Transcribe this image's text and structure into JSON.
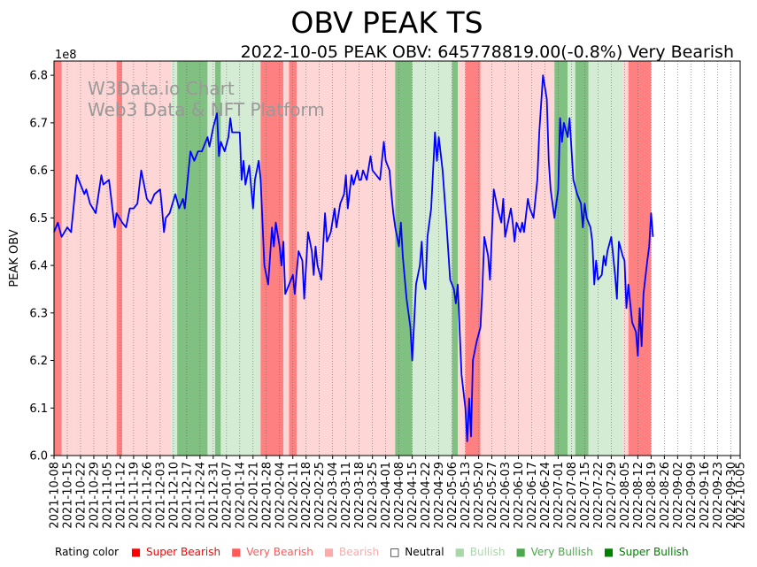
{
  "chart_data": {
    "type": "line",
    "title": "OBV PEAK TS",
    "subtitle": "2022-10-05 PEAK OBV: 645778819.00(-0.8%) Very Bearish",
    "xlabel": "",
    "ylabel": "PEAK OBV",
    "y_multiplier": "1e8",
    "ylim": [
      6.0,
      6.83
    ],
    "yticks": [
      "6.0",
      "6.1",
      "6.2",
      "6.3",
      "6.4",
      "6.5",
      "6.6",
      "6.7",
      "6.8"
    ],
    "ytick_values": [
      6.0,
      6.1,
      6.2,
      6.3,
      6.4,
      6.5,
      6.6,
      6.7,
      6.8
    ],
    "x_start": "2021-10-08",
    "x_end": "2022-10-05",
    "xticks": [
      "2021-10-08",
      "2021-10-15",
      "2021-10-22",
      "2021-10-29",
      "2021-11-05",
      "2021-11-12",
      "2021-11-19",
      "2021-11-26",
      "2021-12-03",
      "2021-12-10",
      "2021-12-17",
      "2021-12-24",
      "2021-12-31",
      "2022-01-07",
      "2022-01-14",
      "2022-01-21",
      "2022-01-28",
      "2022-02-04",
      "2022-02-11",
      "2022-02-18",
      "2022-02-25",
      "2022-03-04",
      "2022-03-11",
      "2022-03-18",
      "2022-03-25",
      "2022-04-01",
      "2022-04-08",
      "2022-04-15",
      "2022-04-22",
      "2022-04-29",
      "2022-05-06",
      "2022-05-13",
      "2022-05-20",
      "2022-05-27",
      "2022-06-03",
      "2022-06-10",
      "2022-06-17",
      "2022-06-24",
      "2022-07-01",
      "2022-07-08",
      "2022-07-15",
      "2022-07-22",
      "2022-07-29",
      "2022-08-05",
      "2022-08-12",
      "2022-08-19",
      "2022-08-26",
      "2022-09-02",
      "2022-09-09",
      "2022-09-16",
      "2022-09-23",
      "2022-09-30",
      "2022-10-05"
    ],
    "bands": [
      {
        "start": 0,
        "end": 4,
        "rating": "very_bearish"
      },
      {
        "start": 4,
        "end": 10,
        "rating": "bearish"
      },
      {
        "start": 10,
        "end": 33,
        "rating": "bearish"
      },
      {
        "start": 33,
        "end": 36,
        "rating": "very_bearish"
      },
      {
        "start": 36,
        "end": 40,
        "rating": "bearish"
      },
      {
        "start": 40,
        "end": 62,
        "rating": "bearish"
      },
      {
        "start": 62,
        "end": 65,
        "rating": "bullish"
      },
      {
        "start": 65,
        "end": 81,
        "rating": "very_bullish"
      },
      {
        "start": 81,
        "end": 85,
        "rating": "bullish"
      },
      {
        "start": 85,
        "end": 88,
        "rating": "very_bullish"
      },
      {
        "start": 88,
        "end": 109,
        "rating": "bullish"
      },
      {
        "start": 109,
        "end": 121,
        "rating": "very_bearish"
      },
      {
        "start": 121,
        "end": 124,
        "rating": "bearish"
      },
      {
        "start": 124,
        "end": 128,
        "rating": "very_bearish"
      },
      {
        "start": 128,
        "end": 180,
        "rating": "bearish"
      },
      {
        "start": 180,
        "end": 189,
        "rating": "very_bullish"
      },
      {
        "start": 189,
        "end": 210,
        "rating": "bullish"
      },
      {
        "start": 210,
        "end": 213,
        "rating": "very_bullish"
      },
      {
        "start": 213,
        "end": 217,
        "rating": "bearish"
      },
      {
        "start": 217,
        "end": 225,
        "rating": "very_bearish"
      },
      {
        "start": 225,
        "end": 264,
        "rating": "bearish"
      },
      {
        "start": 264,
        "end": 271,
        "rating": "very_bullish"
      },
      {
        "start": 271,
        "end": 275,
        "rating": "bullish"
      },
      {
        "start": 275,
        "end": 282,
        "rating": "very_bullish"
      },
      {
        "start": 282,
        "end": 300,
        "rating": "bullish"
      },
      {
        "start": 300,
        "end": 303,
        "rating": "bearish"
      },
      {
        "start": 303,
        "end": 315,
        "rating": "very_bearish"
      }
    ],
    "series": [
      {
        "name": "PEAK OBV",
        "color": "#0000ff",
        "points": [
          [
            0,
            6.47
          ],
          [
            2,
            6.49
          ],
          [
            4,
            6.46
          ],
          [
            7,
            6.48
          ],
          [
            9,
            6.47
          ],
          [
            12,
            6.59
          ],
          [
            16,
            6.55
          ],
          [
            17,
            6.56
          ],
          [
            19,
            6.53
          ],
          [
            22,
            6.51
          ],
          [
            25,
            6.59
          ],
          [
            26,
            6.57
          ],
          [
            29,
            6.58
          ],
          [
            32,
            6.48
          ],
          [
            33,
            6.51
          ],
          [
            36,
            6.49
          ],
          [
            38,
            6.48
          ],
          [
            40,
            6.52
          ],
          [
            42,
            6.52
          ],
          [
            44,
            6.53
          ],
          [
            46,
            6.6
          ],
          [
            47,
            6.58
          ],
          [
            49,
            6.54
          ],
          [
            51,
            6.53
          ],
          [
            53,
            6.55
          ],
          [
            56,
            6.56
          ],
          [
            57,
            6.52
          ],
          [
            58,
            6.47
          ],
          [
            59,
            6.5
          ],
          [
            61,
            6.51
          ],
          [
            64,
            6.55
          ],
          [
            66,
            6.52
          ],
          [
            68,
            6.54
          ],
          [
            69,
            6.52
          ],
          [
            72,
            6.64
          ],
          [
            74,
            6.62
          ],
          [
            76,
            6.64
          ],
          [
            78,
            6.64
          ],
          [
            81,
            6.67
          ],
          [
            82,
            6.65
          ],
          [
            84,
            6.69
          ],
          [
            86,
            6.72
          ],
          [
            87,
            6.63
          ],
          [
            88,
            6.66
          ],
          [
            90,
            6.64
          ],
          [
            92,
            6.67
          ],
          [
            93,
            6.71
          ],
          [
            94,
            6.68
          ],
          [
            96,
            6.68
          ],
          [
            98,
            6.68
          ],
          [
            99,
            6.58
          ],
          [
            100,
            6.62
          ],
          [
            101,
            6.57
          ],
          [
            103,
            6.61
          ],
          [
            105,
            6.52
          ],
          [
            106,
            6.58
          ],
          [
            108,
            6.62
          ],
          [
            109,
            6.58
          ],
          [
            111,
            6.4
          ],
          [
            113,
            6.36
          ],
          [
            115,
            6.48
          ],
          [
            116,
            6.44
          ],
          [
            117,
            6.49
          ],
          [
            119,
            6.44
          ],
          [
            120,
            6.4
          ],
          [
            121,
            6.45
          ],
          [
            122,
            6.34
          ],
          [
            124,
            6.36
          ],
          [
            126,
            6.38
          ],
          [
            127,
            6.34
          ],
          [
            129,
            6.43
          ],
          [
            131,
            6.41
          ],
          [
            132,
            6.33
          ],
          [
            134,
            6.47
          ],
          [
            136,
            6.43
          ],
          [
            137,
            6.38
          ],
          [
            138,
            6.44
          ],
          [
            139,
            6.4
          ],
          [
            141,
            6.37
          ],
          [
            143,
            6.51
          ],
          [
            144,
            6.45
          ],
          [
            146,
            6.47
          ],
          [
            148,
            6.52
          ],
          [
            149,
            6.48
          ],
          [
            151,
            6.53
          ],
          [
            153,
            6.55
          ],
          [
            154,
            6.59
          ],
          [
            155,
            6.52
          ],
          [
            157,
            6.59
          ],
          [
            158,
            6.57
          ],
          [
            160,
            6.6
          ],
          [
            161,
            6.58
          ],
          [
            162,
            6.58
          ],
          [
            163,
            6.6
          ],
          [
            165,
            6.58
          ],
          [
            167,
            6.63
          ],
          [
            168,
            6.6
          ],
          [
            170,
            6.59
          ],
          [
            172,
            6.58
          ],
          [
            174,
            6.66
          ],
          [
            175,
            6.62
          ],
          [
            177,
            6.6
          ],
          [
            178,
            6.55
          ],
          [
            179,
            6.51
          ],
          [
            180,
            6.48
          ],
          [
            182,
            6.44
          ],
          [
            183,
            6.49
          ],
          [
            184,
            6.42
          ],
          [
            186,
            6.33
          ],
          [
            188,
            6.27
          ],
          [
            189,
            6.2
          ],
          [
            191,
            6.36
          ],
          [
            193,
            6.4
          ],
          [
            194,
            6.45
          ],
          [
            195,
            6.37
          ],
          [
            196,
            6.35
          ],
          [
            197,
            6.46
          ],
          [
            199,
            6.52
          ],
          [
            201,
            6.68
          ],
          [
            202,
            6.62
          ],
          [
            203,
            6.67
          ],
          [
            205,
            6.6
          ],
          [
            207,
            6.49
          ],
          [
            209,
            6.37
          ],
          [
            211,
            6.35
          ],
          [
            212,
            6.32
          ],
          [
            213,
            6.36
          ],
          [
            215,
            6.17
          ],
          [
            217,
            6.1
          ],
          [
            218,
            6.03
          ],
          [
            219,
            6.12
          ],
          [
            220,
            6.04
          ],
          [
            221,
            6.2
          ],
          [
            223,
            6.24
          ],
          [
            225,
            6.27
          ],
          [
            226,
            6.35
          ],
          [
            227,
            6.46
          ],
          [
            229,
            6.42
          ],
          [
            230,
            6.37
          ],
          [
            232,
            6.56
          ],
          [
            234,
            6.52
          ],
          [
            236,
            6.49
          ],
          [
            237,
            6.54
          ],
          [
            238,
            6.46
          ],
          [
            239,
            6.48
          ],
          [
            241,
            6.52
          ],
          [
            242,
            6.49
          ],
          [
            243,
            6.45
          ],
          [
            244,
            6.49
          ],
          [
            246,
            6.47
          ],
          [
            247,
            6.49
          ],
          [
            248,
            6.47
          ],
          [
            250,
            6.54
          ],
          [
            251,
            6.52
          ],
          [
            253,
            6.5
          ],
          [
            255,
            6.58
          ],
          [
            256,
            6.68
          ],
          [
            258,
            6.8
          ],
          [
            260,
            6.75
          ],
          [
            261,
            6.62
          ],
          [
            262,
            6.56
          ],
          [
            264,
            6.5
          ],
          [
            266,
            6.56
          ],
          [
            267,
            6.71
          ],
          [
            268,
            6.66
          ],
          [
            269,
            6.7
          ],
          [
            271,
            6.67
          ],
          [
            272,
            6.71
          ],
          [
            274,
            6.58
          ],
          [
            276,
            6.55
          ],
          [
            278,
            6.53
          ],
          [
            279,
            6.48
          ],
          [
            280,
            6.53
          ],
          [
            281,
            6.5
          ],
          [
            283,
            6.48
          ],
          [
            284,
            6.45
          ],
          [
            285,
            6.36
          ],
          [
            286,
            6.41
          ],
          [
            287,
            6.37
          ],
          [
            289,
            6.38
          ],
          [
            290,
            6.42
          ],
          [
            291,
            6.4
          ],
          [
            292,
            6.43
          ],
          [
            294,
            6.46
          ],
          [
            296,
            6.38
          ],
          [
            297,
            6.33
          ],
          [
            298,
            6.45
          ],
          [
            300,
            6.42
          ],
          [
            301,
            6.41
          ],
          [
            302,
            6.31
          ],
          [
            303,
            6.36
          ],
          [
            305,
            6.28
          ],
          [
            307,
            6.26
          ],
          [
            308,
            6.21
          ],
          [
            309,
            6.31
          ],
          [
            310,
            6.23
          ],
          [
            311,
            6.34
          ],
          [
            313,
            6.41
          ],
          [
            314,
            6.44
          ],
          [
            315,
            6.51
          ],
          [
            316,
            6.46
          ]
        ]
      }
    ],
    "watermark": [
      "W3Data.io Chart",
      "Web3 Data & NFT Platform"
    ]
  },
  "legend": {
    "label": "Rating color",
    "items": [
      {
        "text": "Super Bearish",
        "key": "super_bearish"
      },
      {
        "text": "Very Bearish",
        "key": "very_bearish"
      },
      {
        "text": "Bearish",
        "key": "bearish"
      },
      {
        "text": "Neutral",
        "key": "neutral"
      },
      {
        "text": "Bullish",
        "key": "bullish"
      },
      {
        "text": "Very Bullish",
        "key": "very_bullish"
      },
      {
        "text": "Super Bullish",
        "key": "super_bullish"
      }
    ]
  },
  "colors": {
    "super_bearish": "#ff0000",
    "very_bearish": "#ff8080",
    "bearish": "#ffd6d6",
    "neutral": "#ffffff",
    "bullish": "#d4ecd4",
    "very_bullish": "#80c080",
    "super_bullish": "#008000",
    "line": "#0000ff"
  },
  "legend_text_colors": {
    "super_bearish": "#ff0000",
    "very_bearish": "#ff5a5a",
    "bearish": "#ffaaaa",
    "neutral": "#000000",
    "bullish": "#a8d8a8",
    "very_bullish": "#4ea64e",
    "super_bullish": "#008000"
  }
}
